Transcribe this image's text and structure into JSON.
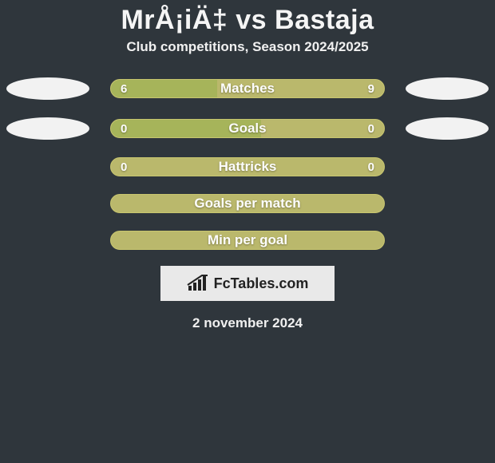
{
  "title": "MrÅ¡iÄ‡ vs Bastaja",
  "subtitle": "Club competitions, Season 2024/2025",
  "date": "2 november 2024",
  "logo_text": "FcTables.com",
  "colors": {
    "background": "#2f363c",
    "bar_base": "#bab86c",
    "bar_fill": "#a6b45a",
    "avatar_bg": "#f2f2f2",
    "logo_box_bg": "#e9e9e9",
    "logo_fg": "#222222",
    "text": "#f5f5f5"
  },
  "rows": [
    {
      "label": "Matches",
      "left": "6",
      "right": "9",
      "fill_pct": 39,
      "show_left": true,
      "show_right": true,
      "show_avatars": true
    },
    {
      "label": "Goals",
      "left": "0",
      "right": "0",
      "fill_pct": 55,
      "show_left": true,
      "show_right": true,
      "show_avatars": true
    },
    {
      "label": "Hattricks",
      "left": "0",
      "right": "0",
      "fill_pct": 0,
      "show_left": true,
      "show_right": true,
      "show_avatars": false
    },
    {
      "label": "Goals per match",
      "left": "",
      "right": "",
      "fill_pct": 0,
      "show_left": false,
      "show_right": false,
      "show_avatars": false
    },
    {
      "label": "Min per goal",
      "left": "",
      "right": "",
      "fill_pct": 0,
      "show_left": false,
      "show_right": false,
      "show_avatars": false
    }
  ]
}
